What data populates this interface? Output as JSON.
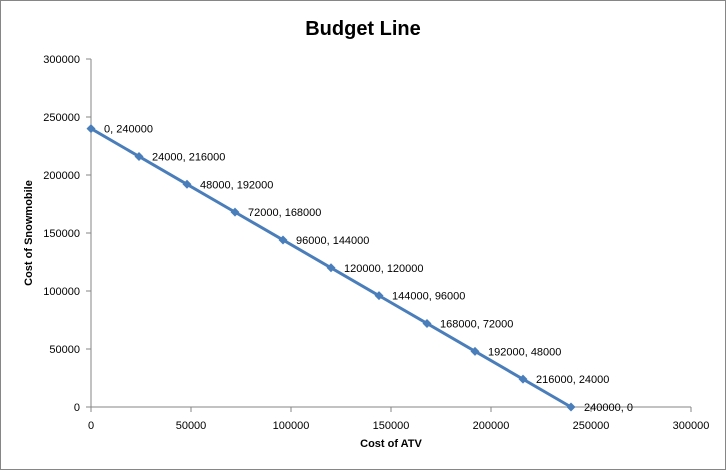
{
  "chart_data": {
    "type": "scatter",
    "title": "Budget Line",
    "xlabel": "Cost of ATV",
    "ylabel": "Cost of Snowmobile",
    "xlim": [
      0,
      300000
    ],
    "ylim": [
      0,
      300000
    ],
    "x_ticks": [
      "0",
      "50000",
      "100000",
      "150000",
      "200000",
      "250000",
      "300000"
    ],
    "y_ticks": [
      "0",
      "50000",
      "100000",
      "150000",
      "200000",
      "250000",
      "300000"
    ],
    "grid": false,
    "legend": "none",
    "line_color": "#4A7EBB",
    "marker": "diamond",
    "points": [
      {
        "x": 0,
        "y": 240000,
        "label": "0, 240000"
      },
      {
        "x": 24000,
        "y": 216000,
        "label": "24000, 216000"
      },
      {
        "x": 48000,
        "y": 192000,
        "label": "48000, 192000"
      },
      {
        "x": 72000,
        "y": 168000,
        "label": "72000, 168000"
      },
      {
        "x": 96000,
        "y": 144000,
        "label": "96000, 144000"
      },
      {
        "x": 120000,
        "y": 120000,
        "label": "120000, 120000"
      },
      {
        "x": 144000,
        "y": 96000,
        "label": "144000, 96000"
      },
      {
        "x": 168000,
        "y": 72000,
        "label": "168000, 72000"
      },
      {
        "x": 192000,
        "y": 48000,
        "label": "192000, 48000"
      },
      {
        "x": 216000,
        "y": 24000,
        "label": "216000, 24000"
      },
      {
        "x": 240000,
        "y": 0,
        "label": "240000, 0"
      }
    ]
  }
}
